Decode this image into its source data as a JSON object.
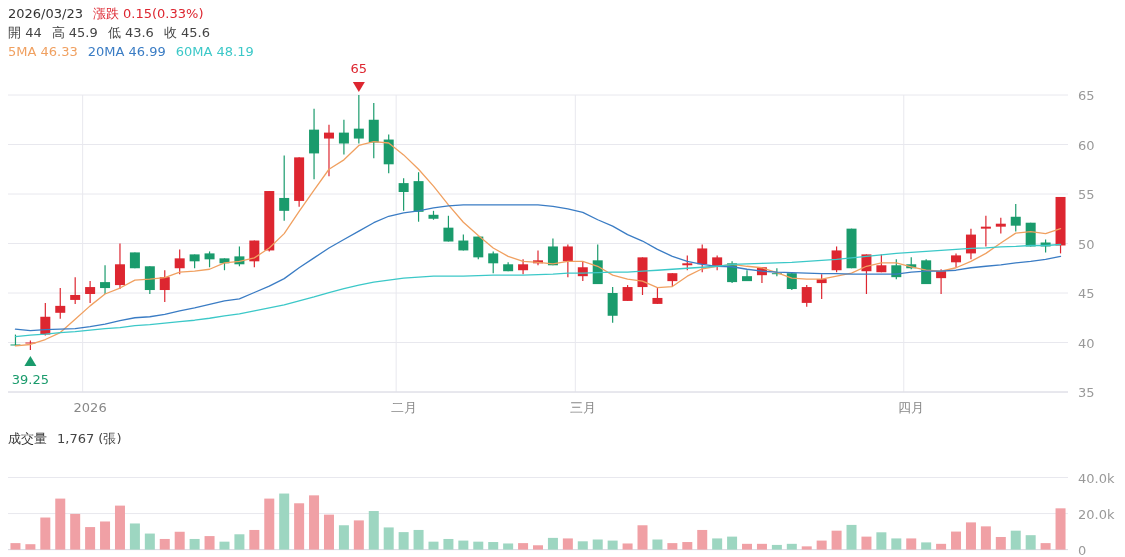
{
  "chart_data": [
    {
      "type": "candlestick",
      "title": "2026/03/23",
      "subtitle": "漲跌 0.15(0.33%)",
      "annotations": [
        "開 44",
        "高 45.9",
        "低 43.6",
        "收 45.6",
        {
          "text": "65",
          "y": 65
        },
        {
          "text": "39.25",
          "y": 39.25
        }
      ],
      "categories": [
        null,
        null,
        null,
        null,
        null,
        "2026",
        null,
        null,
        null,
        null,
        null,
        null,
        null,
        null,
        null,
        null,
        null,
        null,
        null,
        null,
        null,
        null,
        null,
        null,
        null,
        null,
        "二月",
        null,
        null,
        null,
        null,
        null,
        null,
        null,
        null,
        null,
        null,
        null,
        "三月",
        null,
        null,
        null,
        null,
        null,
        null,
        null,
        null,
        null,
        null,
        null,
        null,
        null,
        null,
        null,
        null,
        null,
        null,
        null,
        null,
        null,
        "四月",
        null,
        null,
        null,
        null,
        null,
        null,
        null,
        null,
        null,
        null
      ],
      "ohlc": [
        [
          39.8,
          40.8,
          39.7,
          39.7
        ],
        [
          39.9,
          40.2,
          39.25,
          40.0
        ],
        [
          40.8,
          44.0,
          40.7,
          42.6
        ],
        [
          43.0,
          45.5,
          42.4,
          43.7
        ],
        [
          44.3,
          46.6,
          43.9,
          44.8
        ],
        [
          44.9,
          46.2,
          44.0,
          45.6
        ],
        [
          46.1,
          47.8,
          44.9,
          45.5
        ],
        [
          45.8,
          50.0,
          45.4,
          47.9
        ],
        [
          49.1,
          49.1,
          47.5,
          47.5
        ],
        [
          47.7,
          47.7,
          44.9,
          45.3
        ],
        [
          45.3,
          47.3,
          44.1,
          46.6
        ],
        [
          47.5,
          49.4,
          46.9,
          48.5
        ],
        [
          48.9,
          48.9,
          47.5,
          48.2
        ],
        [
          49.0,
          49.2,
          47.6,
          48.4
        ],
        [
          48.5,
          48.5,
          47.3,
          48.0
        ],
        [
          48.7,
          49.7,
          47.7,
          47.9
        ],
        [
          48.2,
          50.3,
          47.6,
          50.3
        ],
        [
          49.3,
          55.3,
          49.2,
          55.3
        ],
        [
          54.6,
          58.9,
          52.3,
          53.3
        ],
        [
          54.3,
          58.7,
          53.7,
          58.7
        ],
        [
          61.5,
          63.6,
          56.5,
          59.1
        ],
        [
          60.6,
          62.0,
          56.8,
          61.2
        ],
        [
          61.2,
          62.5,
          59.0,
          60.1
        ],
        [
          61.6,
          65,
          60.1,
          60.6
        ],
        [
          62.5,
          64.2,
          58.6,
          60.2
        ],
        [
          60.5,
          61.0,
          57.1,
          58.0
        ],
        [
          56.1,
          56.6,
          53.3,
          55.2
        ],
        [
          56.3,
          57.2,
          52.2,
          53.2
        ],
        [
          52.9,
          53.3,
          52.4,
          52.5
        ],
        [
          51.6,
          52.8,
          50.2,
          50.2
        ],
        [
          50.3,
          50.9,
          49.3,
          49.3
        ],
        [
          50.7,
          50.7,
          48.4,
          48.6
        ],
        [
          49.0,
          49.2,
          47.0,
          48.0
        ],
        [
          47.9,
          48.1,
          47.2,
          47.2
        ],
        [
          47.3,
          48.4,
          46.9,
          47.9
        ],
        [
          48.0,
          49.3,
          47.8,
          48.3
        ],
        [
          49.7,
          50.5,
          47.8,
          47.8
        ],
        [
          48.2,
          49.9,
          46.6,
          49.7
        ],
        [
          46.7,
          48.2,
          46.2,
          47.6
        ],
        [
          48.3,
          49.9,
          45.9,
          45.9
        ],
        [
          45.0,
          45.6,
          42.0,
          42.7
        ],
        [
          44.2,
          45.8,
          44.2,
          45.6
        ],
        [
          45.6,
          48.6,
          44.8,
          48.6
        ],
        [
          43.9,
          45.5,
          43.9,
          44.5
        ],
        [
          46.2,
          47.0,
          45.6,
          47.0
        ],
        [
          47.8,
          48.8,
          47.3,
          48.0
        ],
        [
          47.9,
          49.9,
          47.1,
          49.5
        ],
        [
          47.7,
          48.8,
          47.3,
          48.6
        ],
        [
          48.0,
          48.2,
          46.0,
          46.1
        ],
        [
          46.7,
          47.3,
          46.2,
          46.2
        ],
        [
          46.8,
          47.6,
          46.0,
          47.6
        ],
        [
          47.0,
          47.5,
          46.7,
          46.9
        ],
        [
          47.0,
          47.1,
          45.3,
          45.4
        ],
        [
          44.0,
          45.8,
          43.6,
          45.6
        ],
        [
          46.0,
          46.9,
          44.4,
          46.4
        ],
        [
          47.3,
          49.7,
          47.1,
          49.3
        ],
        [
          51.5,
          51.5,
          47.5,
          47.5
        ],
        [
          47.2,
          48.9,
          44.9,
          48.9
        ],
        [
          47.1,
          48.9,
          47.1,
          47.8
        ],
        [
          47.8,
          48.4,
          46.4,
          46.6
        ],
        [
          47.9,
          48.6,
          47.4,
          47.5
        ],
        [
          48.3,
          48.4,
          45.9,
          45.9
        ],
        [
          46.5,
          47.4,
          44.9,
          47.2
        ],
        [
          48.1,
          49.0,
          47.6,
          48.8
        ],
        [
          49.0,
          51.5,
          48.4,
          50.9
        ],
        [
          51.5,
          52.8,
          49.7,
          51.7
        ],
        [
          51.7,
          52.6,
          51.0,
          52.0
        ],
        [
          52.7,
          54.0,
          51.2,
          51.8
        ],
        [
          52.1,
          52.1,
          49.7,
          49.7
        ],
        [
          50.1,
          50.4,
          49.1,
          49.7
        ],
        [
          49.8,
          54.7,
          49.0,
          54.7
        ]
      ],
      "colors": [
        "#1a9b6c",
        "#dd2630",
        "#dd2630",
        "#dd2630",
        "#dd2630",
        "#dd2630",
        "#1a9b6c",
        "#dd2630",
        "#1a9b6c",
        "#1a9b6c",
        "#dd2630",
        "#dd2630",
        "#1a9b6c",
        "#1a9b6c",
        "#1a9b6c",
        "#1a9b6c",
        "#dd2630",
        "#dd2630",
        "#1a9b6c",
        "#dd2630",
        "#1a9b6c",
        "#dd2630",
        "#1a9b6c",
        "#1a9b6c",
        "#1a9b6c",
        "#1a9b6c",
        "#1a9b6c",
        "#1a9b6c",
        "#1a9b6c",
        "#1a9b6c",
        "#1a9b6c",
        "#1a9b6c",
        "#1a9b6c",
        "#1a9b6c",
        "#dd2630",
        "#dd2630",
        "#1a9b6c",
        "#dd2630",
        "#dd2630",
        "#1a9b6c",
        "#1a9b6c",
        "#dd2630",
        "#dd2630",
        "#dd2630",
        "#dd2630",
        "#dd2630",
        "#dd2630",
        "#dd2630",
        "#1a9b6c",
        "#1a9b6c",
        "#dd2630",
        "#1a9b6c",
        "#1a9b6c",
        "#dd2630",
        "#dd2630",
        "#dd2630",
        "#1a9b6c",
        "#dd2630",
        "#dd2630",
        "#1a9b6c",
        "#1a9b6c",
        "#1a9b6c",
        "#dd2630",
        "#dd2630",
        "#dd2630",
        "#dd2630",
        "#dd2630",
        "#1a9b6c",
        "#1a9b6c",
        "#1a9b6c",
        "#dd2630"
      ],
      "series": [
        {
          "type": "line",
          "name": "5MA 46.33",
          "color": "#f0a060",
          "values": [
            39.65,
            39.8,
            40.3,
            41.0,
            42.35,
            43.7,
            44.9,
            45.5,
            46.3,
            46.4,
            46.55,
            47.1,
            47.2,
            47.4,
            48.05,
            48.2,
            48.55,
            49.55,
            51.0,
            53.25,
            55.4,
            57.5,
            58.45,
            59.9,
            60.3,
            60.15,
            58.95,
            57.5,
            55.8,
            53.9,
            52.15,
            50.8,
            49.55,
            48.7,
            48.2,
            48.1,
            47.95,
            48.2,
            48.2,
            47.7,
            46.8,
            46.4,
            46.2,
            45.55,
            45.65,
            46.7,
            47.45,
            47.7,
            47.9,
            47.7,
            47.55,
            47.05,
            46.5,
            46.4,
            46.4,
            46.7,
            47.0,
            47.7,
            48.05,
            48.05,
            47.65,
            47.3,
            47.2,
            47.55,
            48.2,
            49.0,
            50.05,
            51.05,
            51.2,
            51.0,
            51.5
          ]
        },
        {
          "type": "line",
          "name": "20MA 46.99",
          "color": "#3a7cc4",
          "values": [
            41.35,
            41.2,
            41.3,
            41.35,
            41.4,
            41.6,
            41.85,
            42.2,
            42.5,
            42.6,
            42.85,
            43.2,
            43.5,
            43.85,
            44.2,
            44.4,
            45.05,
            45.7,
            46.45,
            47.55,
            48.55,
            49.55,
            50.4,
            51.25,
            52.1,
            52.75,
            53.1,
            53.3,
            53.6,
            53.8,
            53.9,
            53.9,
            53.9,
            53.9,
            53.9,
            53.9,
            53.75,
            53.5,
            53.15,
            52.4,
            51.75,
            50.9,
            50.25,
            49.4,
            48.7,
            48.2,
            47.9,
            47.7,
            47.65,
            47.4,
            47.2,
            47.1,
            47.05,
            47.0,
            46.95,
            46.95,
            46.9,
            46.9,
            46.9,
            46.9,
            47.1,
            47.2,
            47.2,
            47.3,
            47.55,
            47.7,
            47.85,
            48.05,
            48.2,
            48.4,
            48.7
          ]
        },
        {
          "type": "line",
          "name": "60MA 48.19",
          "color": "#3cc8c8",
          "values": [
            40.6,
            40.75,
            40.85,
            41.0,
            41.1,
            41.25,
            41.4,
            41.5,
            41.7,
            41.8,
            41.95,
            42.1,
            42.25,
            42.45,
            42.7,
            42.9,
            43.2,
            43.5,
            43.8,
            44.2,
            44.6,
            45.05,
            45.45,
            45.8,
            46.1,
            46.3,
            46.5,
            46.6,
            46.7,
            46.7,
            46.7,
            46.75,
            46.8,
            46.8,
            46.8,
            46.85,
            46.9,
            47.0,
            47.0,
            47.05,
            47.1,
            47.1,
            47.2,
            47.3,
            47.4,
            47.5,
            47.6,
            47.7,
            47.9,
            47.95,
            48.0,
            48.05,
            48.1,
            48.2,
            48.3,
            48.4,
            48.55,
            48.7,
            48.85,
            49.0,
            49.1,
            49.2,
            49.3,
            49.4,
            49.5,
            49.55,
            49.65,
            49.7,
            49.8,
            49.8,
            49.9
          ]
        }
      ],
      "ylim": [
        35,
        65
      ],
      "yticks": [
        35,
        40,
        45,
        50,
        55,
        60,
        65
      ],
      "grid": true,
      "legend": "top left"
    },
    {
      "type": "bar",
      "title": "成交量",
      "annotations": [
        "1,767 (張)"
      ],
      "categories": [
        null,
        null,
        null,
        null,
        null,
        null,
        null,
        null,
        null,
        null,
        null,
        null,
        null,
        null,
        null,
        null,
        null,
        null,
        null,
        null,
        null,
        null,
        null,
        null,
        null,
        null,
        null,
        null,
        null,
        null,
        null,
        null,
        null,
        null,
        null,
        null,
        null,
        null,
        null,
        null,
        null,
        null,
        null,
        null,
        null,
        null,
        null,
        null,
        null,
        null,
        null,
        null,
        null,
        null,
        null,
        null,
        null,
        null,
        null,
        null,
        null,
        null,
        null,
        null,
        null,
        null,
        null,
        null,
        null,
        null,
        null
      ],
      "values": [
        3600,
        3000,
        17800,
        28300,
        19800,
        12500,
        15600,
        24400,
        14500,
        8900,
        5900,
        9900,
        5900,
        7500,
        4400,
        8500,
        10900,
        28300,
        31100,
        25700,
        30100,
        19400,
        13500,
        16200,
        21400,
        12300,
        9700,
        10900,
        4400,
        5900,
        5000,
        4400,
        4200,
        3400,
        3600,
        2400,
        6500,
        6200,
        4600,
        5600,
        5000,
        3400,
        13500,
        5600,
        3600,
        4200,
        10900,
        6200,
        7200,
        3200,
        3200,
        2600,
        3200,
        1800,
        5000,
        10500,
        13700,
        7200,
        9600,
        6200,
        6200,
        4000,
        3200,
        10000,
        15100,
        12900,
        7000,
        10500,
        8000,
        3600,
        22900
      ],
      "colors": [
        "#f0a0a5",
        "#f0a0a5",
        "#f0a0a5",
        "#f0a0a5",
        "#f0a0a5",
        "#f0a0a5",
        "#f0a0a5",
        "#f0a0a5",
        "#9dd6c1",
        "#9dd6c1",
        "#f0a0a5",
        "#f0a0a5",
        "#9dd6c1",
        "#f0a0a5",
        "#9dd6c1",
        "#9dd6c1",
        "#f0a0a5",
        "#f0a0a5",
        "#9dd6c1",
        "#f0a0a5",
        "#f0a0a5",
        "#f0a0a5",
        "#9dd6c1",
        "#f0a0a5",
        "#9dd6c1",
        "#9dd6c1",
        "#9dd6c1",
        "#9dd6c1",
        "#9dd6c1",
        "#9dd6c1",
        "#9dd6c1",
        "#9dd6c1",
        "#9dd6c1",
        "#9dd6c1",
        "#f0a0a5",
        "#f0a0a5",
        "#9dd6c1",
        "#f0a0a5",
        "#9dd6c1",
        "#9dd6c1",
        "#9dd6c1",
        "#f0a0a5",
        "#f0a0a5",
        "#9dd6c1",
        "#f0a0a5",
        "#f0a0a5",
        "#f0a0a5",
        "#9dd6c1",
        "#9dd6c1",
        "#f0a0a5",
        "#f0a0a5",
        "#9dd6c1",
        "#9dd6c1",
        "#f0a0a5",
        "#f0a0a5",
        "#f0a0a5",
        "#9dd6c1",
        "#f0a0a5",
        "#9dd6c1",
        "#9dd6c1",
        "#f0a0a5",
        "#9dd6c1",
        "#f0a0a5",
        "#f0a0a5",
        "#f0a0a5",
        "#f0a0a5",
        "#f0a0a5",
        "#9dd6c1",
        "#9dd6c1",
        "#f0a0a5",
        "#f0a0a5"
      ],
      "ylim": [
        0,
        40000
      ],
      "yticks": [
        0,
        {
          "value": 20000,
          "label": "20.0k"
        },
        {
          "value": 40000,
          "label": "40.0k"
        }
      ],
      "grid": "y",
      "tick_labels": "y"
    }
  ]
}
